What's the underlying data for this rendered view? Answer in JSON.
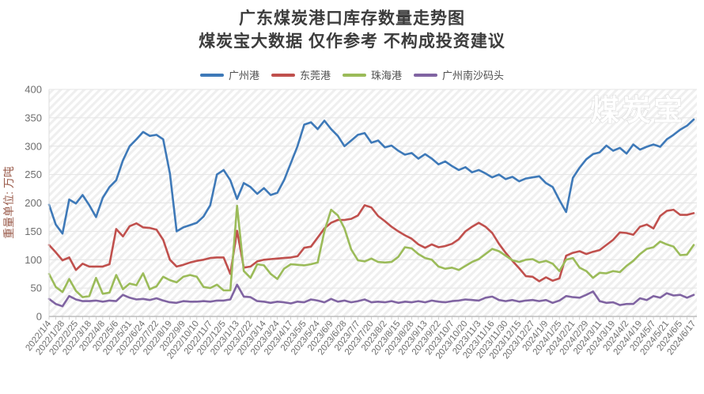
{
  "header": {
    "title": "广东煤炭港口库存数量走势图",
    "subtitle": "煤炭宝大数据 仅作参考 不构成投资建议"
  },
  "watermark": "煤炭宝",
  "y_axis_title": "重量单位: 万吨",
  "colors": {
    "guangzhou": "#3e79b8",
    "dongguan": "#c0504d",
    "zhuhai": "#9bbb59",
    "nansha": "#8064a2",
    "title_text": "#3c3c3c",
    "axis_text": "#6e6e6e",
    "y_axis_title_text": "#9a5b4b",
    "gridline": "#e4e4e4",
    "hatch": "#efefef"
  },
  "chart_data": {
    "type": "line",
    "title": "广东煤炭港口库存数量走势图",
    "subtitle": "煤炭宝大数据 仅作参考 不构成投资建议",
    "ylabel": "重量单位: 万吨",
    "xlabel": "",
    "ylim": [
      0,
      400
    ],
    "y_ticks": [
      0,
      50,
      100,
      150,
      200,
      250,
      300,
      350,
      400
    ],
    "grid": true,
    "legend_position": "top",
    "x_label_rotation": -52,
    "label_stride": 2,
    "x_labels": [
      "2022/1/4",
      "2022/1/28",
      "2022/2/25",
      "2022/3/18",
      "2022/4/8",
      "2022/5/6",
      "2022/5/31",
      "2022/6/24",
      "2022/7/22",
      "2022/8/19",
      "2022/9/9",
      "2022/10/10",
      "2022/11/7",
      "2022/12/5",
      "2023/1/13",
      "2023/2/22",
      "2023/3/14",
      "2023/3/24",
      "2023/4/17",
      "2023/5/5",
      "2023/5/24",
      "2023/6/9",
      "2023/6/28",
      "2023/7/7",
      "2023/7/20",
      "2023/8/2",
      "2023/8/15",
      "2023/8/28",
      "2023/9/13",
      "2023/9/22",
      "2023/10/7",
      "2023/10/20",
      "2023/11/3",
      "2023/11/16",
      "2023/11/30",
      "2023/12/15",
      "2023/12/27",
      "2024/1/9",
      "2024/1/25",
      "2024/2/21",
      "2024/2/29",
      "2024/3/11",
      "2024/3/19",
      "2024/4/2",
      "2024/4/19",
      "2024/5/7",
      "2024/5/21",
      "2024/6/5",
      "2024/6/17"
    ],
    "series": [
      {
        "name": "广州港",
        "key": "guangzhou-port",
        "color": "#3e79b8",
        "values": [
          197,
          162,
          146,
          206,
          199,
          214,
          196,
          175,
          209,
          228,
          240,
          275,
          300,
          312,
          325,
          318,
          320,
          312,
          252,
          150,
          157,
          161,
          165,
          176,
          196,
          250,
          258,
          240,
          207,
          235,
          228,
          216,
          226,
          214,
          218,
          240,
          270,
          300,
          338,
          342,
          330,
          345,
          330,
          318,
          300,
          310,
          320,
          323,
          306,
          310,
          298,
          301,
          292,
          285,
          288,
          278,
          286,
          278,
          268,
          273,
          265,
          258,
          263,
          254,
          258,
          252,
          245,
          250,
          242,
          246,
          238,
          243,
          245,
          247,
          235,
          228,
          205,
          184,
          244,
          262,
          277,
          286,
          289,
          301,
          292,
          297,
          287,
          303,
          294,
          299,
          303,
          299,
          312,
          320,
          329,
          336,
          347
        ]
      },
      {
        "name": "东莞港",
        "key": "dongguan-port",
        "color": "#c0504d",
        "values": [
          126,
          113,
          99,
          104,
          82,
          93,
          88,
          88,
          88,
          92,
          154,
          141,
          159,
          164,
          157,
          156,
          153,
          135,
          100,
          88,
          91,
          95,
          98,
          100,
          103,
          104,
          104,
          75,
          151,
          86,
          88,
          97,
          100,
          101,
          102,
          103,
          104,
          106,
          121,
          123,
          139,
          155,
          165,
          170,
          170,
          172,
          178,
          196,
          192,
          177,
          168,
          158,
          150,
          143,
          137,
          127,
          121,
          127,
          122,
          124,
          128,
          136,
          150,
          158,
          165,
          158,
          147,
          128,
          112,
          98,
          85,
          71,
          70,
          62,
          69,
          63,
          67,
          107,
          112,
          115,
          110,
          114,
          117,
          126,
          135,
          148,
          147,
          144,
          158,
          162,
          155,
          177,
          186,
          188,
          179,
          179,
          182
        ]
      },
      {
        "name": "珠海港",
        "key": "zhuhai-port",
        "color": "#9bbb59",
        "values": [
          75,
          52,
          43,
          66,
          45,
          34,
          36,
          68,
          40,
          42,
          73,
          48,
          58,
          55,
          76,
          48,
          53,
          70,
          64,
          60,
          70,
          73,
          70,
          52,
          50,
          56,
          46,
          46,
          195,
          80,
          68,
          92,
          90,
          75,
          66,
          84,
          92,
          91,
          90,
          92,
          95,
          150,
          188,
          178,
          155,
          118,
          99,
          97,
          102,
          96,
          95,
          96,
          105,
          122,
          120,
          110,
          103,
          100,
          88,
          84,
          86,
          82,
          89,
          96,
          101,
          110,
          119,
          115,
          107,
          99,
          96,
          100,
          101,
          95,
          98,
          93,
          80,
          100,
          103,
          86,
          80,
          68,
          77,
          76,
          80,
          78,
          89,
          98,
          110,
          119,
          122,
          132,
          127,
          123,
          108,
          109,
          126
        ]
      },
      {
        "name": "广州南沙码头",
        "key": "guangzhou-nansha-terminal",
        "color": "#8064a2",
        "values": [
          31,
          22,
          18,
          36,
          30,
          27,
          27,
          28,
          26,
          28,
          27,
          38,
          33,
          30,
          31,
          29,
          32,
          28,
          25,
          24,
          27,
          26,
          26,
          27,
          26,
          28,
          28,
          30,
          56,
          35,
          34,
          27,
          26,
          24,
          26,
          25,
          23,
          26,
          25,
          30,
          28,
          25,
          31,
          26,
          28,
          25,
          27,
          30,
          25,
          26,
          25,
          27,
          24,
          26,
          25,
          27,
          25,
          28,
          26,
          25,
          27,
          28,
          30,
          29,
          28,
          33,
          35,
          29,
          27,
          29,
          26,
          28,
          29,
          27,
          29,
          24,
          28,
          36,
          34,
          33,
          38,
          44,
          27,
          24,
          25,
          20,
          22,
          22,
          32,
          29,
          36,
          33,
          41,
          37,
          38,
          33,
          38
        ]
      }
    ]
  }
}
